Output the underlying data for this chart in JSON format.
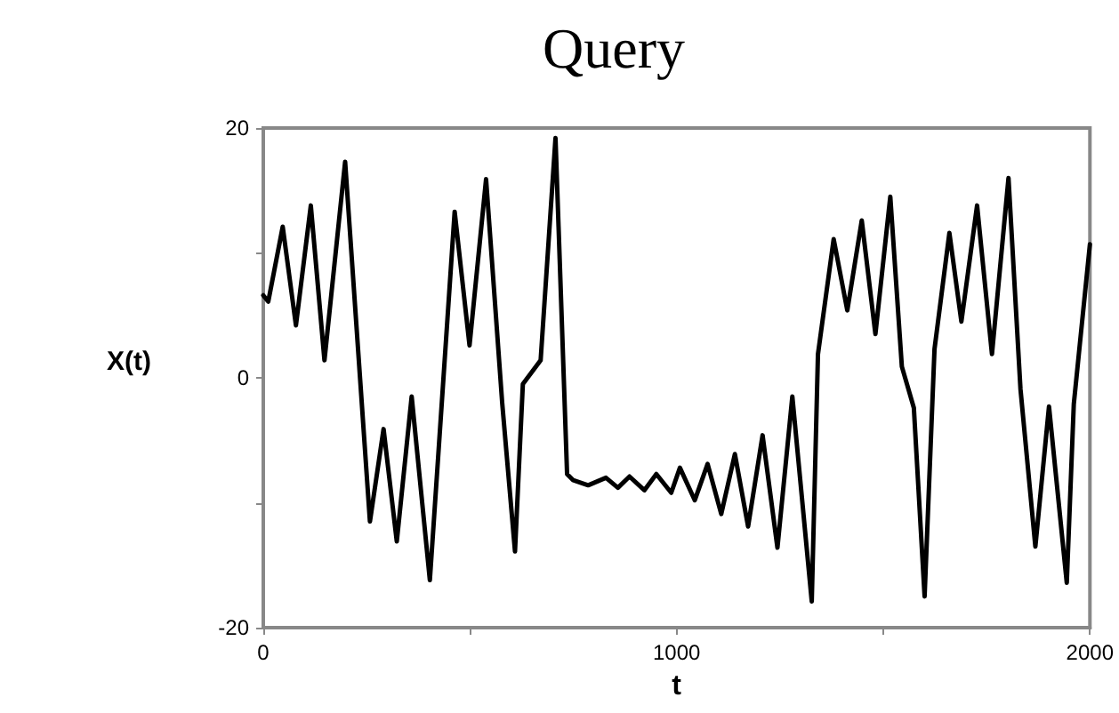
{
  "chart_data": {
    "type": "line",
    "title": "Query",
    "xlabel": "t",
    "ylabel": "X(t)",
    "x": [
      0,
      12,
      47,
      79,
      115,
      148,
      198,
      258,
      291,
      323,
      359,
      403,
      463,
      499,
      539,
      578,
      609,
      628,
      671,
      707,
      735,
      750,
      786,
      829,
      858,
      886,
      922,
      951,
      987,
      1008,
      1044,
      1075,
      1108,
      1141,
      1173,
      1208,
      1244,
      1280,
      1327,
      1342,
      1380,
      1413,
      1448,
      1481,
      1517,
      1545,
      1574,
      1600,
      1624,
      1660,
      1689,
      1727,
      1763,
      1803,
      1832,
      1868,
      1901,
      1944,
      1961,
      2000
    ],
    "series": [
      {
        "color": "#000000",
        "values": [
          6.6,
          6.1,
          12.1,
          4.2,
          13.8,
          1.4,
          17.3,
          -11.5,
          -4.1,
          -13.1,
          -1.5,
          -16.2,
          13.3,
          2.6,
          15.9,
          -2.0,
          -13.9,
          -0.5,
          1.4,
          19.2,
          -7.7,
          -8.2,
          -8.6,
          -8.0,
          -8.8,
          -7.9,
          -9.0,
          -7.7,
          -9.2,
          -7.2,
          -9.8,
          -6.9,
          -10.9,
          -6.1,
          -11.9,
          -4.6,
          -13.6,
          -1.5,
          -17.9,
          1.9,
          11.1,
          5.4,
          12.6,
          3.5,
          14.5,
          0.9,
          -2.4,
          -17.5,
          2.3,
          11.6,
          4.5,
          13.8,
          1.9,
          16.0,
          -0.9,
          -13.5,
          -2.3,
          -16.4,
          -2.1,
          10.7
        ]
      }
    ],
    "xlim": [
      0,
      2000
    ],
    "xticks": [
      0,
      {
        "value": 500,
        "label": null
      },
      1000,
      {
        "value": 1500,
        "label": null
      },
      2000
    ],
    "ylim": [
      -20,
      20
    ],
    "yticks": [
      -20,
      {
        "value": -10,
        "label": null
      },
      0,
      {
        "value": 10,
        "label": null
      },
      20
    ],
    "grid": false,
    "marker": "none",
    "line_style": "solid"
  }
}
